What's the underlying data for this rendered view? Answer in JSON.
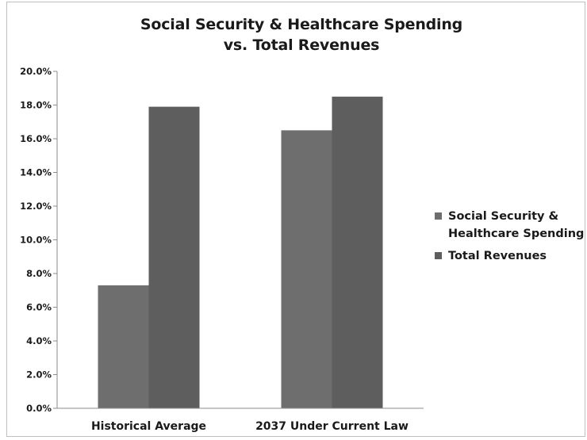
{
  "chart_data": {
    "type": "bar",
    "title_lines": [
      "Social Security & Healthcare Spending",
      "vs. Total Revenues"
    ],
    "categories": [
      "Historical Average",
      "2037 Under Current Law"
    ],
    "series": [
      {
        "name": "Social Security & Healthcare Spending",
        "values": [
          7.3,
          16.5
        ],
        "color": "#6e6e6e"
      },
      {
        "name": "Total Revenues",
        "values": [
          17.9,
          18.5
        ],
        "color": "#5e5e5e"
      }
    ],
    "legend_lines": [
      [
        "Social Security &",
        "Healthcare Spending"
      ],
      [
        "Total Revenues"
      ]
    ],
    "ylim": [
      0,
      20
    ],
    "y_ticks": [
      "0.0%",
      "2.0%",
      "4.0%",
      "6.0%",
      "8.0%",
      "10.0%",
      "12.0%",
      "14.0%",
      "16.0%",
      "18.0%",
      "20.0%"
    ],
    "y_unit": "%",
    "grid": false,
    "legend_position": "right"
  }
}
